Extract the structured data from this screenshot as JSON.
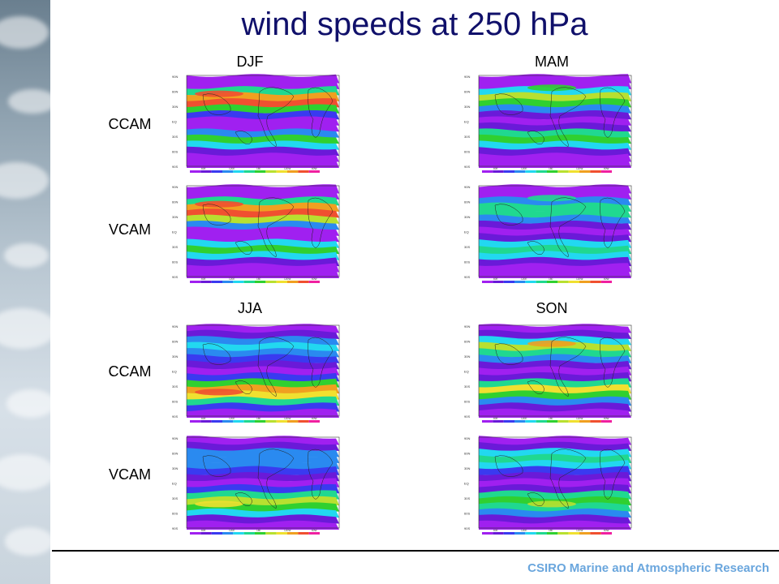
{
  "title": "wind speeds at 250 hPa",
  "footer": "CSIRO Marine and Atmospheric Research",
  "seasons": [
    "DJF",
    "MAM",
    "JJA",
    "SON"
  ],
  "row_labels": [
    "CCAM",
    "VCAM",
    "CCAM",
    "VCAM"
  ],
  "panels": [
    {
      "season": "DJF",
      "model": "CCAM"
    },
    {
      "season": "MAM",
      "model": "CCAM"
    },
    {
      "season": "DJF",
      "model": "VCAM"
    },
    {
      "season": "MAM",
      "model": "VCAM"
    },
    {
      "season": "JJA",
      "model": "CCAM"
    },
    {
      "season": "SON",
      "model": "CCAM"
    },
    {
      "season": "JJA",
      "model": "VCAM"
    },
    {
      "season": "SON",
      "model": "VCAM"
    }
  ],
  "lat_labels": [
    "90N",
    "60N",
    "30N",
    "EQ",
    "30S",
    "60S",
    "90S"
  ],
  "lon_labels": [
    "60E",
    "120E",
    "180",
    "120W",
    "60W"
  ],
  "colorbar": {
    "ticks": [
      "5",
      "10",
      "15",
      "20",
      "25",
      "30",
      "35",
      "40",
      "45",
      "50"
    ],
    "colors": [
      "#a020f0",
      "#6a1ad8",
      "#3a3af0",
      "#2a8af0",
      "#22d8f0",
      "#20d890",
      "#30d030",
      "#b8e030",
      "#f0e030",
      "#f0a020",
      "#f05030",
      "#f020a0"
    ]
  },
  "colors": {
    "title": "#10106a",
    "footer": "#6aa6dd"
  }
}
